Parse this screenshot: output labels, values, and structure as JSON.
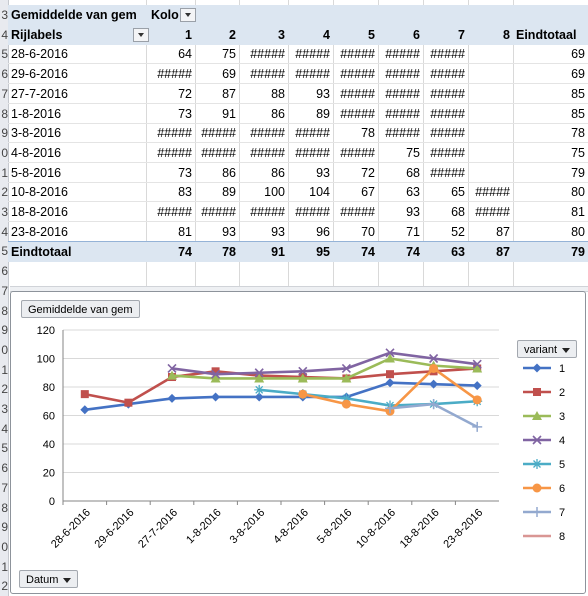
{
  "pivot": {
    "filter_label": "Gemiddelde van gem",
    "col_field_label": "Kolo",
    "row_labels_header": "Rijlabels",
    "total_header": "Eindtotaal",
    "columns": [
      "1",
      "2",
      "3",
      "4",
      "5",
      "6",
      "7",
      "8"
    ],
    "rows": [
      {
        "label": "28-6-2016",
        "values": [
          "64",
          "75",
          "#####",
          "#####",
          "#####",
          "#####",
          "#####",
          ""
        ],
        "total": "69"
      },
      {
        "label": "29-6-2016",
        "values": [
          "#####",
          "69",
          "#####",
          "#####",
          "#####",
          "#####",
          "#####",
          ""
        ],
        "total": "69"
      },
      {
        "label": "27-7-2016",
        "values": [
          "72",
          "87",
          "88",
          "93",
          "#####",
          "#####",
          "#####",
          ""
        ],
        "total": "85"
      },
      {
        "label": "1-8-2016",
        "values": [
          "73",
          "91",
          "86",
          "89",
          "#####",
          "#####",
          "#####",
          ""
        ],
        "total": "85"
      },
      {
        "label": "3-8-2016",
        "values": [
          "#####",
          "#####",
          "#####",
          "#####",
          "78",
          "#####",
          "#####",
          ""
        ],
        "total": "78"
      },
      {
        "label": "4-8-2016",
        "values": [
          "#####",
          "#####",
          "#####",
          "#####",
          "#####",
          "75",
          "#####",
          ""
        ],
        "total": "75"
      },
      {
        "label": "5-8-2016",
        "values": [
          "73",
          "86",
          "86",
          "93",
          "72",
          "68",
          "#####",
          ""
        ],
        "total": "79"
      },
      {
        "label": "10-8-2016",
        "values": [
          "83",
          "89",
          "100",
          "104",
          "67",
          "63",
          "65",
          "#####"
        ],
        "total": "80"
      },
      {
        "label": "18-8-2016",
        "values": [
          "#####",
          "#####",
          "#####",
          "#####",
          "#####",
          "93",
          "68",
          "#####"
        ],
        "total": "81"
      },
      {
        "label": "23-8-2016",
        "values": [
          "81",
          "93",
          "93",
          "96",
          "70",
          "71",
          "52",
          "87"
        ],
        "total": "80"
      }
    ],
    "grand_total": {
      "label": "Eindtotaal",
      "values": [
        "74",
        "78",
        "91",
        "95",
        "74",
        "74",
        "63",
        "87"
      ],
      "total": "79"
    }
  },
  "row_numbers": [
    "3",
    "4",
    "5",
    "6",
    "7",
    "8",
    "9",
    "0",
    "1",
    "2",
    "3",
    "4",
    "5",
    "6",
    "7",
    "8",
    "9",
    "0",
    "1",
    "2",
    "3",
    "4",
    "5",
    "6",
    "7",
    "8",
    "9",
    "0",
    "1",
    "2"
  ],
  "chart": {
    "value_button": "Gemiddelde van gem",
    "axis_button": "Datum",
    "legend_button": "variant"
  },
  "chart_data": {
    "type": "line",
    "categories": [
      "28-6-2016",
      "29-6-2016",
      "27-7-2016",
      "1-8-2016",
      "3-8-2016",
      "4-8-2016",
      "5-8-2016",
      "10-8-2016",
      "18-8-2016",
      "23-8-2016"
    ],
    "ylim": [
      0,
      120
    ],
    "yticks": [
      0,
      20,
      40,
      60,
      80,
      100,
      120
    ],
    "grid": true,
    "legend_position": "right",
    "series": [
      {
        "name": "1",
        "color": "#4472c4",
        "marker": "diamond",
        "values": [
          64,
          68,
          72,
          73,
          73,
          73,
          73,
          83,
          82,
          81
        ]
      },
      {
        "name": "2",
        "color": "#c0504d",
        "marker": "square",
        "values": [
          75,
          69,
          87,
          91,
          88,
          87,
          86,
          89,
          91,
          93
        ]
      },
      {
        "name": "3",
        "color": "#9bbb59",
        "marker": "triangle",
        "values": [
          null,
          null,
          88,
          86,
          86,
          86,
          86,
          100,
          95,
          93
        ]
      },
      {
        "name": "4",
        "color": "#8064a2",
        "marker": "x",
        "values": [
          null,
          null,
          93,
          89,
          90,
          91,
          93,
          104,
          100,
          96
        ]
      },
      {
        "name": "5",
        "color": "#4bacc6",
        "marker": "star",
        "values": [
          null,
          null,
          null,
          null,
          78,
          75,
          72,
          67,
          68,
          70
        ]
      },
      {
        "name": "6",
        "color": "#f79646",
        "marker": "circle",
        "values": [
          null,
          null,
          null,
          null,
          null,
          75,
          68,
          63,
          93,
          71
        ]
      },
      {
        "name": "7",
        "color": "#93a9cf",
        "marker": "plus",
        "values": [
          null,
          null,
          null,
          null,
          null,
          null,
          null,
          65,
          68,
          52
        ]
      },
      {
        "name": "8",
        "color": "#d99694",
        "marker": "none",
        "values": [
          null,
          null,
          null,
          null,
          null,
          null,
          null,
          null,
          null,
          87
        ]
      }
    ]
  }
}
